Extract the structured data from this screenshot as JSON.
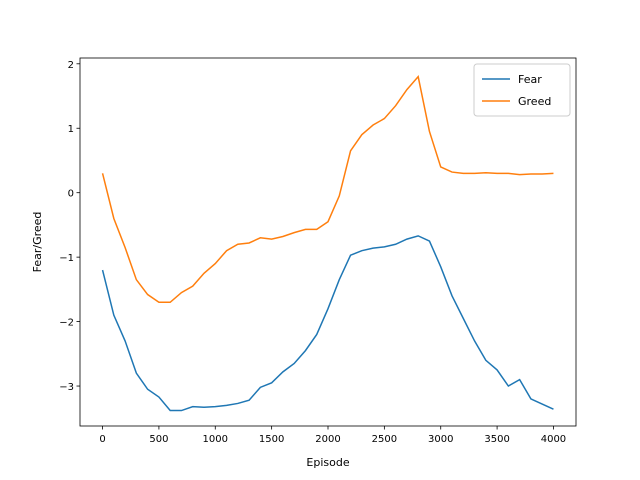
{
  "chart_data": {
    "type": "line",
    "x_label": "Episode",
    "y_label": "Fear/Greed",
    "x": [
      0,
      100,
      200,
      300,
      400,
      500,
      600,
      700,
      800,
      900,
      1000,
      1100,
      1200,
      1300,
      1400,
      1500,
      1600,
      1700,
      1800,
      1900,
      2000,
      2100,
      2200,
      2300,
      2400,
      2500,
      2600,
      2700,
      2800,
      2900,
      3000,
      3100,
      3200,
      3300,
      3400,
      3500,
      3600,
      3700,
      3800,
      3900,
      4000
    ],
    "series": [
      {
        "name": "Fear",
        "color": "#1f77b4",
        "values": [
          -1.2,
          -1.9,
          -2.3,
          -2.8,
          -3.05,
          -3.17,
          -3.38,
          -3.38,
          -3.32,
          -3.33,
          -3.32,
          -3.3,
          -3.27,
          -3.22,
          -3.02,
          -2.95,
          -2.78,
          -2.65,
          -2.45,
          -2.2,
          -1.8,
          -1.35,
          -0.97,
          -0.9,
          -0.86,
          -0.84,
          -0.8,
          -0.72,
          -0.67,
          -0.75,
          -1.15,
          -1.6,
          -1.95,
          -2.3,
          -2.6,
          -2.75,
          -3.0,
          -2.9,
          -3.2,
          -3.28,
          -3.36
        ]
      },
      {
        "name": "Greed",
        "color": "#ff7f0e",
        "values": [
          0.3,
          -0.4,
          -0.85,
          -1.35,
          -1.58,
          -1.7,
          -1.7,
          -1.55,
          -1.45,
          -1.25,
          -1.1,
          -0.9,
          -0.8,
          -0.78,
          -0.7,
          -0.72,
          -0.68,
          -0.62,
          -0.57,
          -0.57,
          -0.45,
          -0.05,
          0.65,
          0.9,
          1.05,
          1.15,
          1.35,
          1.6,
          1.8,
          0.95,
          0.4,
          0.32,
          0.3,
          0.3,
          0.31,
          0.3,
          0.3,
          0.28,
          0.29,
          0.29,
          0.3
        ]
      }
    ],
    "xlim": [
      -200,
      4200
    ],
    "ylim": [
      -3.62,
      2.09
    ],
    "xticks": [
      0,
      500,
      1000,
      1500,
      2000,
      2500,
      3000,
      3500,
      4000
    ],
    "yticks": [
      {
        "value": -3,
        "label": "−3"
      },
      {
        "value": -2,
        "label": "−2"
      },
      {
        "value": -1,
        "label": "−1"
      },
      0,
      1,
      2
    ],
    "legend": "upper right"
  }
}
